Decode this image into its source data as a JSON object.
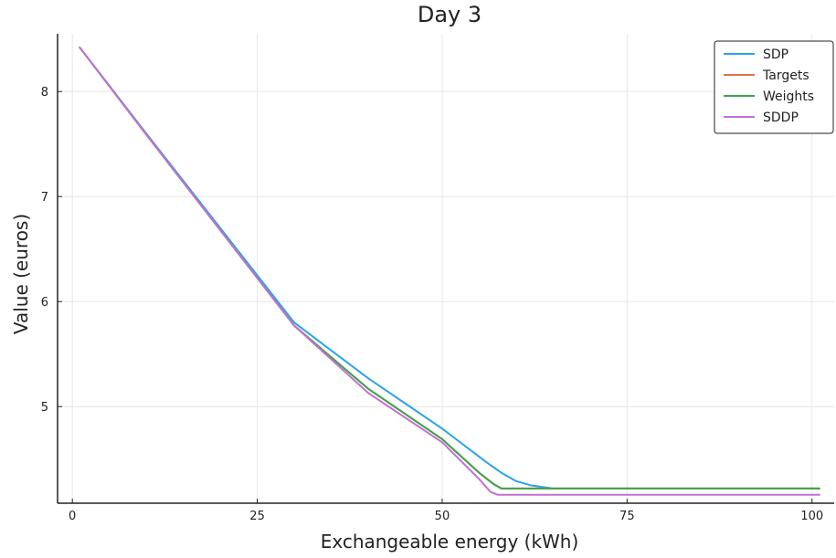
{
  "chart_data": {
    "type": "line",
    "title": "Day 3",
    "xlabel": "Exchangeable energy (kWh)",
    "ylabel": "Value (euros)",
    "xlim": [
      -2,
      103
    ],
    "ylim": [
      4.08,
      8.55
    ],
    "xticks": [
      0,
      25,
      50,
      75,
      100
    ],
    "xtick_labels": [
      "0",
      "25",
      "50",
      "75",
      "100"
    ],
    "yticks": [
      5,
      6,
      7,
      8
    ],
    "ytick_labels": [
      "5",
      "6",
      "7",
      "8"
    ],
    "grid": true,
    "legend_position": "top-right",
    "series": [
      {
        "name": "SDP",
        "color": "#2aa3e8",
        "x": [
          1,
          10,
          20,
          30,
          40,
          45,
          50,
          53,
          56,
          58,
          60,
          62,
          65,
          70,
          80,
          90,
          101
        ],
        "y": [
          8.42,
          7.6,
          6.7,
          5.8,
          5.27,
          5.03,
          4.79,
          4.63,
          4.47,
          4.37,
          4.29,
          4.25,
          4.22,
          4.22,
          4.22,
          4.22,
          4.22
        ]
      },
      {
        "name": "Targets",
        "color": "#e26f46",
        "x": [
          1,
          10,
          20,
          30,
          40,
          50,
          55,
          57,
          58,
          60,
          70,
          80,
          90,
          101
        ],
        "y": [
          8.42,
          7.59,
          6.68,
          5.77,
          5.17,
          4.69,
          4.37,
          4.26,
          4.22,
          4.22,
          4.22,
          4.22,
          4.22,
          4.22
        ]
      },
      {
        "name": "Weights",
        "color": "#3da44d",
        "x": [
          1,
          10,
          20,
          30,
          40,
          50,
          55,
          57,
          58,
          60,
          70,
          80,
          90,
          101
        ],
        "y": [
          8.42,
          7.59,
          6.68,
          5.77,
          5.17,
          4.69,
          4.37,
          4.26,
          4.22,
          4.22,
          4.22,
          4.22,
          4.22,
          4.22
        ]
      },
      {
        "name": "SDDP",
        "color": "#c271d2",
        "x": [
          1,
          10,
          20,
          30,
          40,
          50,
          55,
          56.5,
          57.5,
          60,
          70,
          80,
          90,
          101
        ],
        "y": [
          8.42,
          7.59,
          6.68,
          5.77,
          5.13,
          4.66,
          4.31,
          4.19,
          4.16,
          4.16,
          4.16,
          4.16,
          4.16,
          4.16
        ]
      }
    ]
  }
}
